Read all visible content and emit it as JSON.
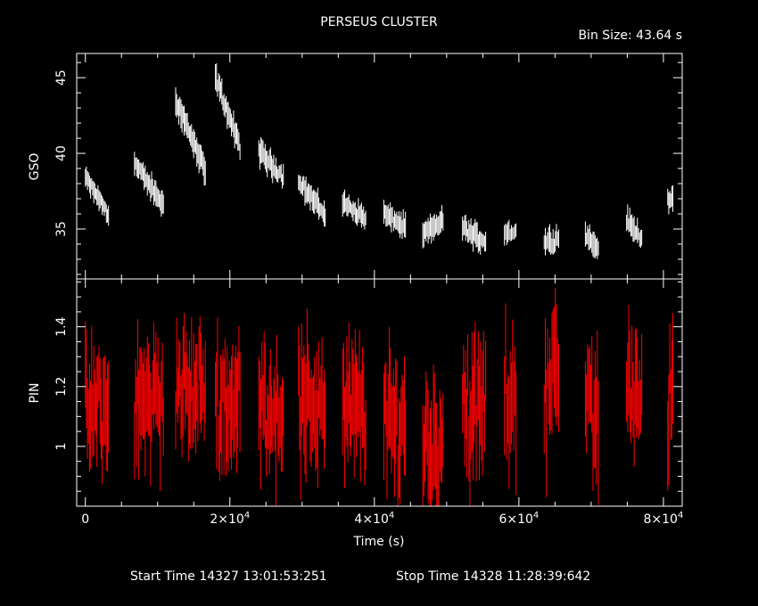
{
  "chart_data": [
    {
      "type": "scatter",
      "title": "PERSEUS CLUSTER",
      "subtitle": "Bin Size:  43.64  s",
      "ylabel": "GSO",
      "xlabel": "Time (s)",
      "xlim": [
        -1200,
        82600
      ],
      "ylim": [
        31.7,
        46.6
      ],
      "yticks": [
        "35",
        "40",
        "45"
      ],
      "ytick_values": [
        35,
        40,
        45
      ],
      "color": "#ffffff",
      "grid": false,
      "segments": [
        {
          "x0": 0,
          "x1": 3200,
          "y0": 38.4,
          "y1": 36.0,
          "err": 0.6
        },
        {
          "x0": 6800,
          "x1": 10800,
          "y0": 39.3,
          "y1": 36.6,
          "err": 0.7
        },
        {
          "x0": 12500,
          "x1": 16600,
          "y0": 43.6,
          "y1": 38.8,
          "err": 0.8
        },
        {
          "x0": 18000,
          "x1": 21400,
          "y0": 45.0,
          "y1": 40.4,
          "err": 0.8
        },
        {
          "x0": 24000,
          "x1": 27400,
          "y0": 40.2,
          "y1": 38.4,
          "err": 0.7
        },
        {
          "x0": 29500,
          "x1": 33200,
          "y0": 38.2,
          "y1": 35.9,
          "err": 0.7
        },
        {
          "x0": 35600,
          "x1": 38800,
          "y0": 36.7,
          "y1": 35.7,
          "err": 0.7
        },
        {
          "x0": 41300,
          "x1": 44300,
          "y0": 36.0,
          "y1": 35.1,
          "err": 0.7
        },
        {
          "x0": 46700,
          "x1": 49500,
          "y0": 34.6,
          "y1": 35.6,
          "err": 0.7
        },
        {
          "x0": 52200,
          "x1": 55400,
          "y0": 35.1,
          "y1": 34.1,
          "err": 0.7
        },
        {
          "x0": 58000,
          "x1": 59600,
          "y0": 34.8,
          "y1": 34.7,
          "err": 0.7
        },
        {
          "x0": 63500,
          "x1": 65500,
          "y0": 34.1,
          "y1": 34.4,
          "err": 0.8
        },
        {
          "x0": 69200,
          "x1": 71000,
          "y0": 34.7,
          "y1": 33.7,
          "err": 0.7
        },
        {
          "x0": 74900,
          "x1": 77000,
          "y0": 35.6,
          "y1": 34.4,
          "err": 0.7
        },
        {
          "x0": 80600,
          "x1": 81300,
          "y0": 37.0,
          "y1": 36.9,
          "err": 0.8
        }
      ]
    },
    {
      "type": "scatter",
      "ylabel": "PIN",
      "xlabel": "Time (s)",
      "xlim": [
        -1200,
        82600
      ],
      "ylim": [
        0.8,
        1.56
      ],
      "yticks": [
        "1",
        "1.2",
        "1.4"
      ],
      "ytick_values": [
        1.0,
        1.2,
        1.4
      ],
      "xticks": [
        "0",
        "2×10",
        "4×10",
        "6×10",
        "8×10"
      ],
      "xtick_sups": [
        "",
        "4",
        "4",
        "4",
        "4"
      ],
      "xtick_values": [
        0,
        20000,
        40000,
        60000,
        80000
      ],
      "color": "#ff0000",
      "grid": false,
      "segments": [
        {
          "x0": 0,
          "x1": 3200,
          "y0": 1.12,
          "y1": 1.12,
          "err": 0.15
        },
        {
          "x0": 6800,
          "x1": 10800,
          "y0": 1.15,
          "y1": 1.15,
          "err": 0.16
        },
        {
          "x0": 12500,
          "x1": 16600,
          "y0": 1.18,
          "y1": 1.18,
          "err": 0.15
        },
        {
          "x0": 18000,
          "x1": 21400,
          "y0": 1.16,
          "y1": 1.16,
          "err": 0.16
        },
        {
          "x0": 24000,
          "x1": 27400,
          "y0": 1.13,
          "y1": 1.13,
          "err": 0.16
        },
        {
          "x0": 29500,
          "x1": 33200,
          "y0": 1.14,
          "y1": 1.14,
          "err": 0.16
        },
        {
          "x0": 35600,
          "x1": 38800,
          "y0": 1.12,
          "y1": 1.12,
          "err": 0.16
        },
        {
          "x0": 41300,
          "x1": 44300,
          "y0": 1.07,
          "y1": 1.07,
          "err": 0.16
        },
        {
          "x0": 46700,
          "x1": 49500,
          "y0": 1.02,
          "y1": 1.02,
          "err": 0.17
        },
        {
          "x0": 52200,
          "x1": 55400,
          "y0": 1.12,
          "y1": 1.12,
          "err": 0.17
        },
        {
          "x0": 58000,
          "x1": 59600,
          "y0": 1.16,
          "y1": 1.16,
          "err": 0.17
        },
        {
          "x0": 63500,
          "x1": 65500,
          "y0": 1.22,
          "y1": 1.22,
          "err": 0.18
        },
        {
          "x0": 69200,
          "x1": 71000,
          "y0": 1.12,
          "y1": 1.12,
          "err": 0.17
        },
        {
          "x0": 74900,
          "x1": 77000,
          "y0": 1.21,
          "y1": 1.21,
          "err": 0.16
        },
        {
          "x0": 80600,
          "x1": 81300,
          "y0": 1.13,
          "y1": 1.13,
          "err": 0.17
        }
      ]
    }
  ],
  "footer": {
    "start_time": "Start Time 14327 13:01:53:251",
    "stop_time": "Stop Time 14328 11:28:39:642"
  }
}
